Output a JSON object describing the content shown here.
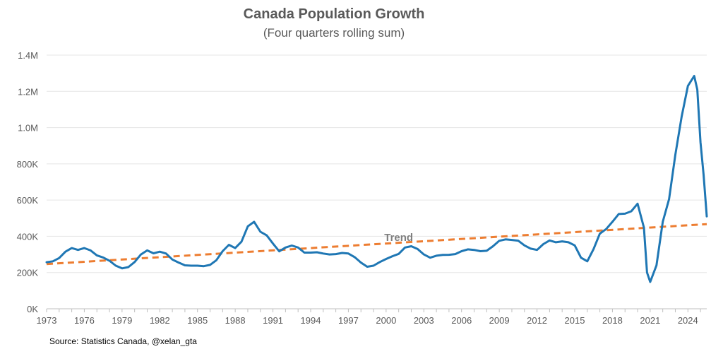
{
  "chart_data": {
    "type": "line",
    "title": "Canada Population Growth",
    "subtitle": "(Four quarters rolling sum)",
    "source": "Source: Statistics Canada, @xelan_gta",
    "xlabel": "",
    "ylabel": "",
    "x_ticks": [
      "1973",
      "1976",
      "1979",
      "1982",
      "1985",
      "1988",
      "1991",
      "1994",
      "1997",
      "2000",
      "2003",
      "2006",
      "2009",
      "2012",
      "2015",
      "2018",
      "2021",
      "2024"
    ],
    "y_ticks": [
      "0K",
      "200K",
      "400K",
      "600K",
      "800K",
      "1.0M",
      "1.2M",
      "1.4M"
    ],
    "xlim": [
      1973,
      2025.5
    ],
    "ylim": [
      0,
      1400000
    ],
    "grid": "horizontal",
    "annotations": [
      {
        "text": "Trend",
        "x": 2001.0,
        "y": 375000
      }
    ],
    "series": [
      {
        "color": "#1f77b4",
        "style": "solid",
        "points": [
          [
            1973.0,
            257000
          ],
          [
            1973.5,
            262000
          ],
          [
            1974.0,
            280000
          ],
          [
            1974.5,
            315000
          ],
          [
            1975.0,
            335000
          ],
          [
            1975.5,
            325000
          ],
          [
            1976.0,
            335000
          ],
          [
            1976.5,
            322000
          ],
          [
            1977.0,
            295000
          ],
          [
            1977.5,
            283000
          ],
          [
            1978.0,
            265000
          ],
          [
            1978.5,
            238000
          ],
          [
            1979.0,
            223000
          ],
          [
            1979.5,
            230000
          ],
          [
            1980.0,
            258000
          ],
          [
            1980.5,
            300000
          ],
          [
            1981.0,
            322000
          ],
          [
            1981.5,
            306000
          ],
          [
            1982.0,
            315000
          ],
          [
            1982.5,
            305000
          ],
          [
            1983.0,
            272000
          ],
          [
            1983.5,
            255000
          ],
          [
            1984.0,
            240000
          ],
          [
            1984.5,
            238000
          ],
          [
            1985.0,
            238000
          ],
          [
            1985.5,
            235000
          ],
          [
            1986.0,
            242000
          ],
          [
            1986.5,
            268000
          ],
          [
            1987.0,
            318000
          ],
          [
            1987.5,
            353000
          ],
          [
            1988.0,
            335000
          ],
          [
            1988.5,
            370000
          ],
          [
            1989.0,
            455000
          ],
          [
            1989.5,
            480000
          ],
          [
            1990.0,
            425000
          ],
          [
            1990.5,
            405000
          ],
          [
            1991.0,
            360000
          ],
          [
            1991.5,
            317000
          ],
          [
            1992.0,
            338000
          ],
          [
            1992.5,
            349000
          ],
          [
            1993.0,
            338000
          ],
          [
            1993.5,
            310000
          ],
          [
            1994.0,
            310000
          ],
          [
            1994.5,
            312000
          ],
          [
            1995.0,
            305000
          ],
          [
            1995.5,
            300000
          ],
          [
            1996.0,
            302000
          ],
          [
            1996.5,
            308000
          ],
          [
            1997.0,
            305000
          ],
          [
            1997.5,
            285000
          ],
          [
            1998.0,
            255000
          ],
          [
            1998.5,
            232000
          ],
          [
            1999.0,
            238000
          ],
          [
            1999.5,
            258000
          ],
          [
            2000.0,
            275000
          ],
          [
            2000.5,
            290000
          ],
          [
            2001.0,
            303000
          ],
          [
            2001.5,
            338000
          ],
          [
            2002.0,
            345000
          ],
          [
            2002.5,
            330000
          ],
          [
            2003.0,
            300000
          ],
          [
            2003.5,
            282000
          ],
          [
            2004.0,
            293000
          ],
          [
            2004.5,
            297000
          ],
          [
            2005.0,
            298000
          ],
          [
            2005.5,
            302000
          ],
          [
            2006.0,
            318000
          ],
          [
            2006.5,
            328000
          ],
          [
            2007.0,
            325000
          ],
          [
            2007.5,
            318000
          ],
          [
            2008.0,
            320000
          ],
          [
            2008.5,
            345000
          ],
          [
            2009.0,
            375000
          ],
          [
            2009.5,
            383000
          ],
          [
            2010.0,
            380000
          ],
          [
            2010.5,
            376000
          ],
          [
            2011.0,
            350000
          ],
          [
            2011.5,
            332000
          ],
          [
            2012.0,
            325000
          ],
          [
            2012.5,
            357000
          ],
          [
            2013.0,
            377000
          ],
          [
            2013.5,
            367000
          ],
          [
            2014.0,
            372000
          ],
          [
            2014.5,
            367000
          ],
          [
            2015.0,
            350000
          ],
          [
            2015.5,
            282000
          ],
          [
            2016.0,
            262000
          ],
          [
            2016.5,
            330000
          ],
          [
            2017.0,
            415000
          ],
          [
            2017.5,
            440000
          ],
          [
            2018.0,
            480000
          ],
          [
            2018.5,
            523000
          ],
          [
            2019.0,
            525000
          ],
          [
            2019.5,
            538000
          ],
          [
            2020.0,
            580000
          ],
          [
            2020.5,
            448000
          ],
          [
            2020.75,
            200000
          ],
          [
            2021.0,
            148000
          ],
          [
            2021.5,
            240000
          ],
          [
            2022.0,
            480000
          ],
          [
            2022.5,
            605000
          ],
          [
            2023.0,
            850000
          ],
          [
            2023.5,
            1060000
          ],
          [
            2024.0,
            1230000
          ],
          [
            2024.5,
            1285000
          ],
          [
            2024.75,
            1210000
          ],
          [
            2025.0,
            920000
          ],
          [
            2025.25,
            740000
          ],
          [
            2025.5,
            510000
          ]
        ]
      },
      {
        "name": "Trend",
        "color": "#ed7d31",
        "style": "dashed",
        "points": [
          [
            1973.0,
            247000
          ],
          [
            2025.5,
            467000
          ]
        ]
      }
    ]
  }
}
